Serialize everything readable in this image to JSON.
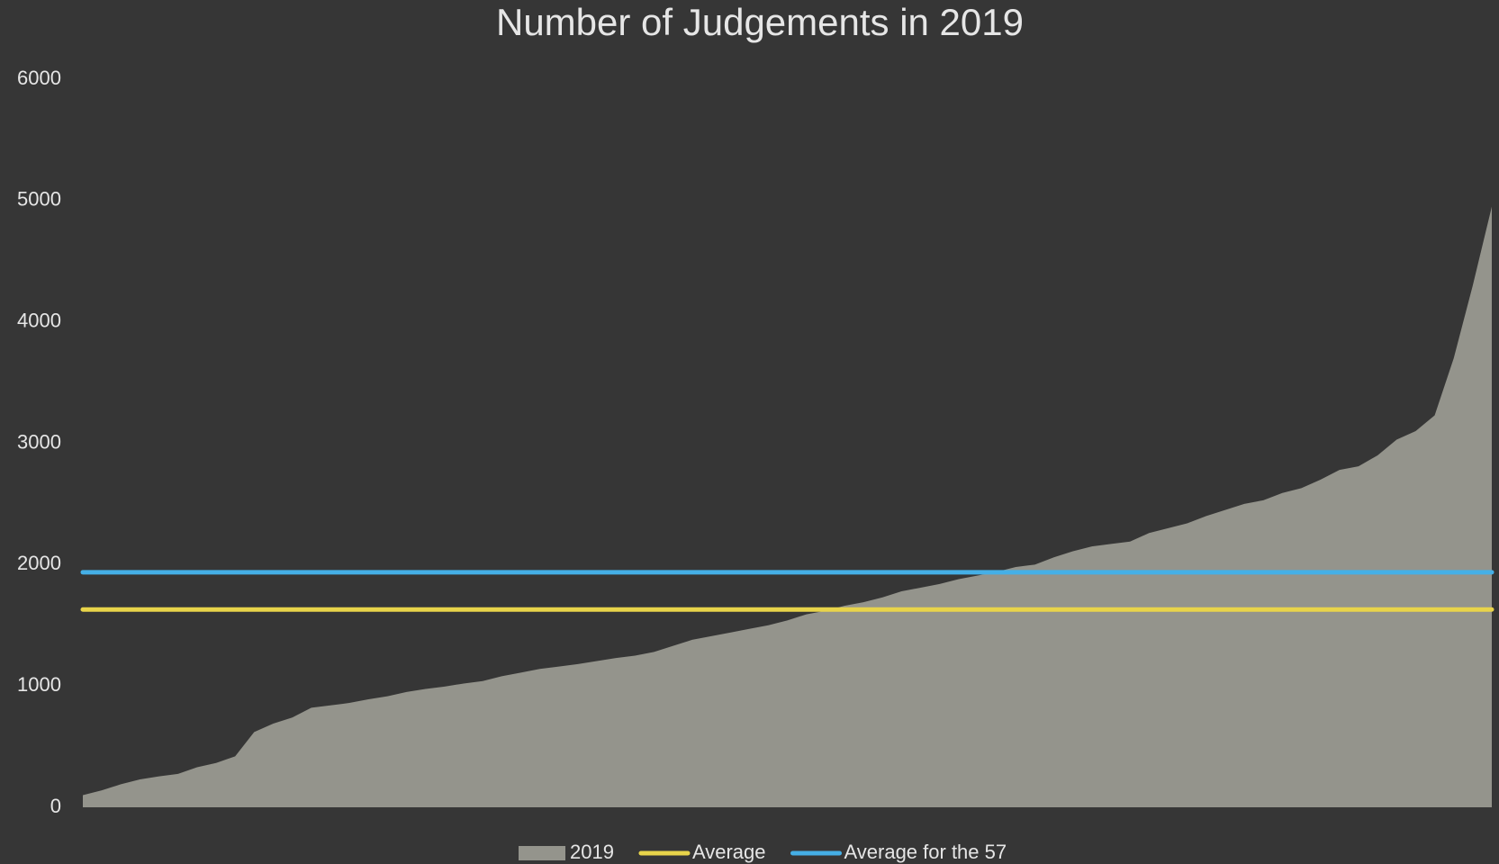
{
  "chart_data": {
    "type": "area",
    "title": "Number of Judgements in 2019",
    "series": [
      {
        "name": "2019",
        "color": "#94948c",
        "values": [
          100,
          140,
          190,
          230,
          255,
          275,
          330,
          365,
          420,
          620,
          690,
          740,
          820,
          840,
          860,
          890,
          915,
          950,
          975,
          995,
          1020,
          1040,
          1080,
          1110,
          1140,
          1160,
          1180,
          1205,
          1230,
          1250,
          1280,
          1330,
          1380,
          1410,
          1440,
          1470,
          1500,
          1540,
          1590,
          1620,
          1660,
          1690,
          1730,
          1780,
          1810,
          1840,
          1880,
          1910,
          1940,
          1980,
          2000,
          2060,
          2110,
          2150,
          2170,
          2190,
          2260,
          2300,
          2340,
          2400,
          2450,
          2500,
          2530,
          2590,
          2630,
          2700,
          2780,
          2810,
          2900,
          3030,
          3100,
          3230,
          3700,
          4300,
          4950
        ]
      },
      {
        "name": "Average",
        "color": "#e8d44a",
        "value": 1630
      },
      {
        "name": "Average for the 57",
        "color": "#45afe6",
        "value": 1937
      }
    ],
    "ylim": [
      0,
      6000
    ],
    "yticks": [
      0,
      1000,
      2000,
      3000,
      4000,
      5000,
      6000
    ]
  }
}
